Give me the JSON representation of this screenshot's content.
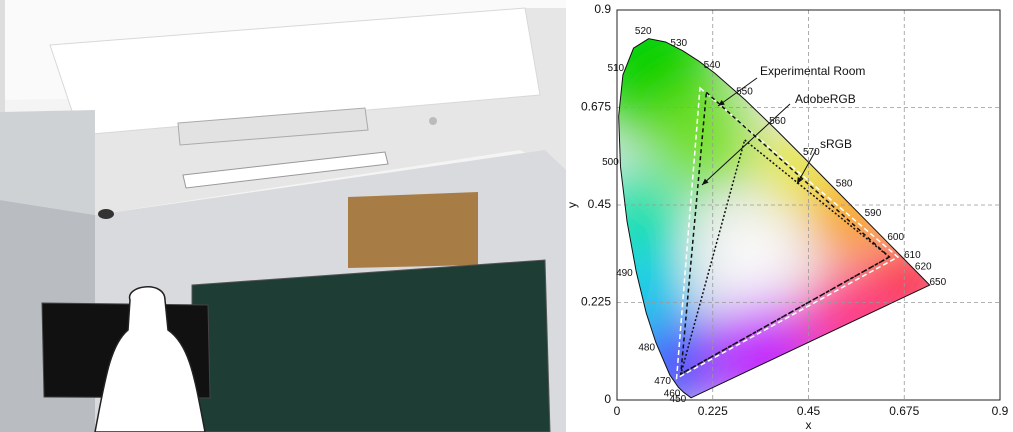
{
  "chart_data": {
    "type": "line",
    "xlabel": "x",
    "ylabel": "y",
    "xlim": [
      0,
      0.9
    ],
    "ylim": [
      0,
      0.9
    ],
    "xticks": [
      0,
      0.225,
      0.45,
      0.675,
      0.9
    ],
    "yticks": [
      0,
      0.225,
      0.45,
      0.675,
      0.9
    ],
    "grid": true,
    "locus": {
      "labels": [
        null,
        "450",
        "460",
        "470",
        "480",
        null,
        "490",
        null,
        "500",
        null,
        "510",
        null,
        "520",
        null,
        "530",
        null,
        "540",
        "550",
        "560",
        "570",
        "580",
        "590",
        "600",
        "610",
        "620",
        "650",
        null
      ],
      "x": [
        0.1741,
        0.1566,
        0.144,
        0.1241,
        0.0913,
        0.0687,
        0.0454,
        0.0235,
        0.0082,
        0.0039,
        0.0139,
        0.0389,
        0.0743,
        0.1142,
        0.1547,
        0.1929,
        0.2296,
        0.3016,
        0.3731,
        0.4441,
        0.5125,
        0.5752,
        0.627,
        0.6658,
        0.6915,
        0.726,
        0.7347
      ],
      "y": [
        0.005,
        0.0177,
        0.0297,
        0.0578,
        0.1327,
        0.2007,
        0.295,
        0.4127,
        0.5384,
        0.6548,
        0.7502,
        0.812,
        0.8338,
        0.8262,
        0.8059,
        0.7816,
        0.7543,
        0.6923,
        0.6245,
        0.5547,
        0.4866,
        0.4242,
        0.3725,
        0.334,
        0.3083,
        0.274,
        0.2653
      ]
    },
    "series": [
      {
        "name": "Experimental Room",
        "color": "#ffffff",
        "dash": "5,3",
        "x": [
          0.195,
          0.66,
          0.14
        ],
        "values": [
          0.72,
          0.33,
          0.05
        ]
      },
      {
        "name": "AdobeRGB",
        "color": "#111111",
        "dash": "4,3",
        "x": [
          0.21,
          0.64,
          0.15
        ],
        "values": [
          0.71,
          0.33,
          0.06
        ]
      },
      {
        "name": "sRGB",
        "color": "#111111",
        "dash": "2,2",
        "x": [
          0.3,
          0.64,
          0.15
        ],
        "values": [
          0.6,
          0.33,
          0.06
        ]
      }
    ]
  }
}
